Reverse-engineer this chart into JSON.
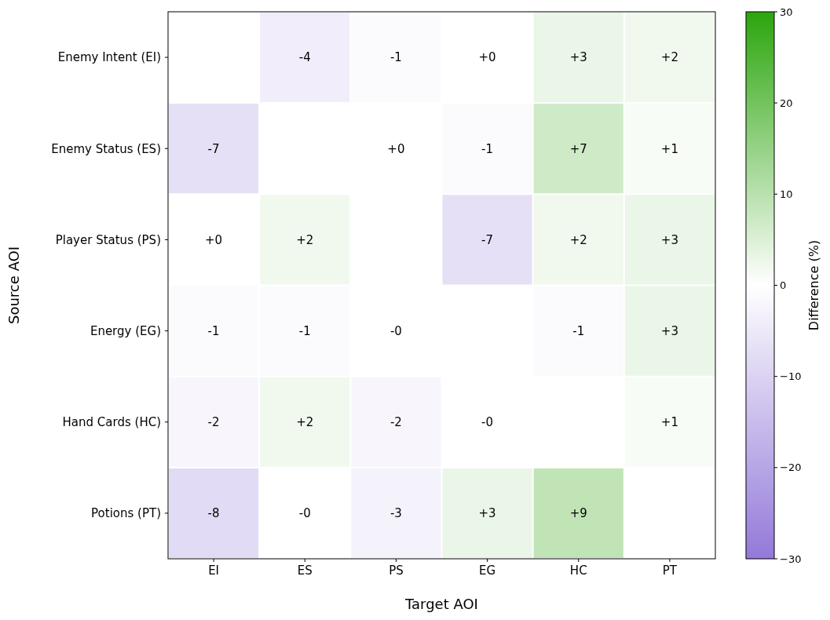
{
  "chart_data": {
    "type": "heatmap",
    "xlabel": "Target AOI",
    "ylabel": "Source AOI",
    "clabel": "Difference (%)",
    "categories": [
      "EI",
      "ES",
      "PS",
      "EG",
      "HC",
      "PT"
    ],
    "y_categories": [
      "Enemy Intent (EI)",
      "Enemy Status (ES)",
      "Player Status (PS)",
      "Energy (EG)",
      "Hand Cards (HC)",
      "Potions (PT)"
    ],
    "cells": [
      [
        null,
        -4,
        -1,
        0,
        3,
        2
      ],
      [
        -7,
        null,
        0,
        -1,
        7,
        1
      ],
      [
        0,
        2,
        null,
        -7,
        2,
        3
      ],
      [
        -1,
        -1,
        0,
        null,
        -1,
        3
      ],
      [
        -2,
        2,
        -2,
        0,
        null,
        1
      ],
      [
        -8,
        0,
        -3,
        3,
        9,
        null
      ]
    ],
    "cell_labels": [
      [
        null,
        "-4",
        "-1",
        "+0",
        "+3",
        "+2"
      ],
      [
        "-7",
        null,
        "+0",
        "-1",
        "+7",
        "+1"
      ],
      [
        "+0",
        "+2",
        null,
        "-7",
        "+2",
        "+3"
      ],
      [
        "-1",
        "-1",
        "-0",
        null,
        "-1",
        "+3"
      ],
      [
        "-2",
        "+2",
        "-2",
        "-0",
        null,
        "+1"
      ],
      [
        "-8",
        "-0",
        "-3",
        "+3",
        "+9",
        null
      ]
    ],
    "colors": [
      "#9379d9",
      "#ffffff",
      "#2ca50d"
    ],
    "clim": [
      -30,
      30
    ],
    "cticks": [
      {
        "value": -30,
        "label": "−30"
      },
      {
        "value": -20,
        "label": "−20"
      },
      {
        "value": -10,
        "label": "−10"
      },
      0,
      10,
      20,
      30
    ]
  }
}
